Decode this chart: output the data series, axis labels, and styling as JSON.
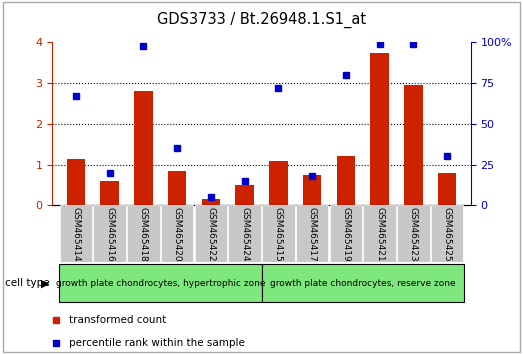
{
  "title": "GDS3733 / Bt.26948.1.S1_at",
  "categories": [
    "GSM465414",
    "GSM465416",
    "GSM465418",
    "GSM465420",
    "GSM465422",
    "GSM465424",
    "GSM465415",
    "GSM465417",
    "GSM465419",
    "GSM465421",
    "GSM465423",
    "GSM465425"
  ],
  "red_values": [
    1.15,
    0.6,
    2.8,
    0.85,
    0.15,
    0.5,
    1.1,
    0.75,
    1.2,
    3.75,
    2.95,
    0.8
  ],
  "blue_values": [
    67,
    20,
    98,
    35,
    5,
    15,
    72,
    18,
    80,
    99,
    99,
    30
  ],
  "group1_label": "growth plate chondrocytes, hypertrophic zone",
  "group2_label": "growth plate chondrocytes, reserve zone",
  "group1_count": 6,
  "group2_count": 6,
  "ylim_left": [
    0,
    4
  ],
  "ylim_right": [
    0,
    100
  ],
  "yticks_left": [
    0,
    1,
    2,
    3,
    4
  ],
  "ytick_labels_right": [
    "0",
    "25",
    "50",
    "75",
    "100%"
  ],
  "bar_color": "#cc2200",
  "dot_color": "#0000cc",
  "bg_color": "#ffffff",
  "tick_bg": "#c8c8c8",
  "group_bg": "#7ee87e",
  "cell_type_label": "cell type",
  "legend_red": "transformed count",
  "legend_blue": "percentile rank within the sample",
  "border_color": "#aaaaaa"
}
